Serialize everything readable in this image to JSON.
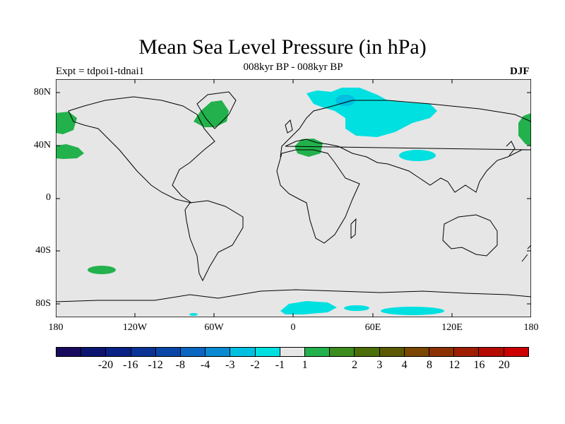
{
  "figure": {
    "title": "Mean Sea Level Pressure (in hPa)",
    "subtitle": "008kyr BP - 008kyr BP",
    "experiment": "Expt = tdpoi1-tdnai1",
    "season": "DJF"
  },
  "axes": {
    "lat_labels": [
      "80N",
      "40N",
      "0",
      "40S",
      "80S"
    ],
    "lon_labels": [
      "180",
      "120W",
      "60W",
      "0",
      "60E",
      "120E",
      "180"
    ]
  },
  "colorbar": {
    "colors": [
      "#1a0a5e",
      "#0c1570",
      "#0a2185",
      "#0a3396",
      "#0a46a8",
      "#0a66bf",
      "#0a8ad2",
      "#00bfe0",
      "#00e0e0",
      "#e6e6e6",
      "#22b14c",
      "#3c8c1e",
      "#4a6e0a",
      "#5c5a00",
      "#7a4600",
      "#8c3200",
      "#a01e00",
      "#b40a00",
      "#cc0000"
    ],
    "labels": [
      "-20",
      "-16",
      "-12",
      "-8",
      "-4",
      "-3",
      "-2",
      "-1",
      "1",
      "2",
      "3",
      "4",
      "8",
      "12",
      "16",
      "20"
    ]
  },
  "chart_data": {
    "type": "heatmap",
    "map": "world, cylindrical equidistant, 180W–180E, 90S–90N",
    "title": "Mean Sea Level Pressure (in hPa)",
    "subtitle": "008kyr BP - 008kyr BP",
    "background_class": "-1 to 1",
    "anomaly_regions": [
      {
        "region": "Arctic / Barents-Kara Sea and northern Siberia",
        "class": "-2 to -1"
      },
      {
        "region": "Barents Sea core",
        "class": "-3 to -2"
      },
      {
        "region": "Central Asia (Tibet area)",
        "class": "-2 to -1"
      },
      {
        "region": "Antarctic coast south of Africa",
        "class": "-2 to -1"
      },
      {
        "region": "Antarctic coast south of Indian Ocean",
        "class": "-2 to -1"
      },
      {
        "region": "Greenland / Baffin Bay",
        "class": "1 to 2"
      },
      {
        "region": "Mediterranean / North Africa",
        "class": "1 to 2"
      },
      {
        "region": "North Pacific (Alaska and Kamchatka)",
        "class": "1 to 2"
      },
      {
        "region": "Northeast Pacific near 35N",
        "class": "1 to 2"
      },
      {
        "region": "South Pacific near 55S",
        "class": "1 to 2"
      }
    ],
    "xlabel": "",
    "ylabel": ""
  }
}
